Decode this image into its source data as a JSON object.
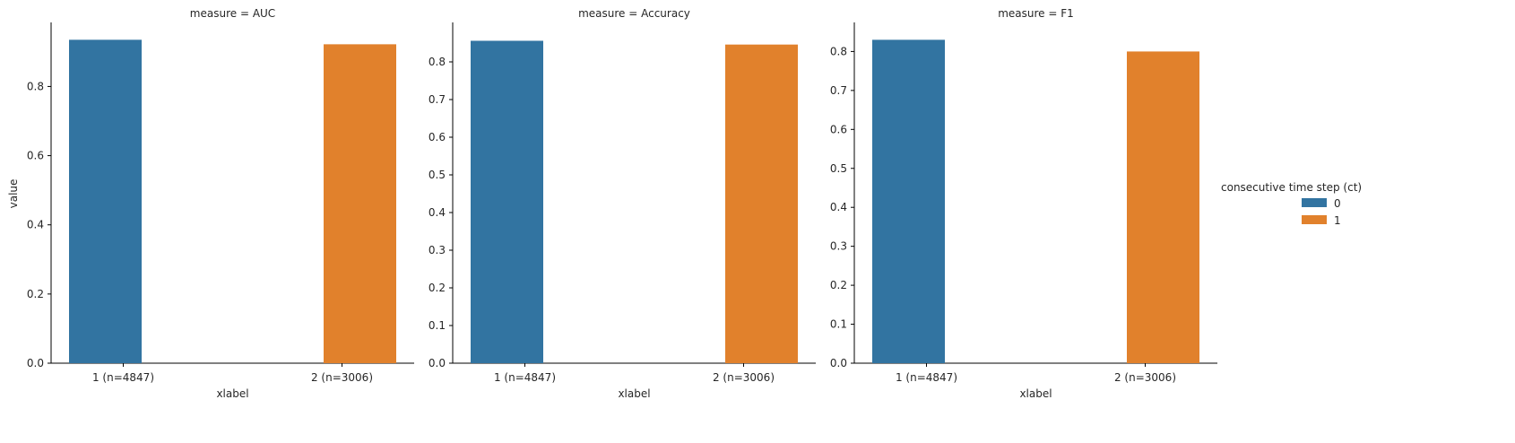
{
  "chart_data": {
    "type": "bar",
    "facet_variable": "measure",
    "xlabel": "xlabel",
    "ylabel": "value",
    "categories": [
      "1 (n=4847)",
      "2 (n=3006)"
    ],
    "legend": {
      "title": "consecutive time step (ct)",
      "placement": "right",
      "entries": [
        {
          "label": "0",
          "color": "#3274a1"
        },
        {
          "label": "1",
          "color": "#e1812c"
        }
      ]
    },
    "grid": false,
    "panels": [
      {
        "title": "measure = AUC",
        "ylim": [
          0,
          0.98
        ],
        "yticks": [
          "0.0",
          "0.2",
          "0.4",
          "0.6",
          "0.8"
        ],
        "tick_values": [
          0,
          0.2,
          0.4,
          0.6,
          0.8
        ],
        "series": [
          {
            "ct": "0",
            "category": "1 (n=4847)",
            "value": 0.935
          },
          {
            "ct": "1",
            "category": "2 (n=3006)",
            "value": 0.922
          }
        ]
      },
      {
        "title": "measure = Accuracy",
        "ylim": [
          0,
          0.9
        ],
        "yticks": [
          "0.0",
          "0.1",
          "0.2",
          "0.3",
          "0.4",
          "0.5",
          "0.6",
          "0.7",
          "0.8"
        ],
        "tick_values": [
          0,
          0.1,
          0.2,
          0.3,
          0.4,
          0.5,
          0.6,
          0.7,
          0.8
        ],
        "series": [
          {
            "ct": "0",
            "category": "1 (n=4847)",
            "value": 0.856
          },
          {
            "ct": "1",
            "category": "2 (n=3006)",
            "value": 0.846
          }
        ]
      },
      {
        "title": "measure = F1",
        "ylim": [
          0,
          0.87
        ],
        "yticks": [
          "0.0",
          "0.1",
          "0.2",
          "0.3",
          "0.4",
          "0.5",
          "0.6",
          "0.7",
          "0.8"
        ],
        "tick_values": [
          0,
          0.1,
          0.2,
          0.3,
          0.4,
          0.5,
          0.6,
          0.7,
          0.8
        ],
        "series": [
          {
            "ct": "0",
            "category": "1 (n=4847)",
            "value": 0.83
          },
          {
            "ct": "1",
            "category": "2 (n=3006)",
            "value": 0.8
          }
        ]
      }
    ]
  }
}
